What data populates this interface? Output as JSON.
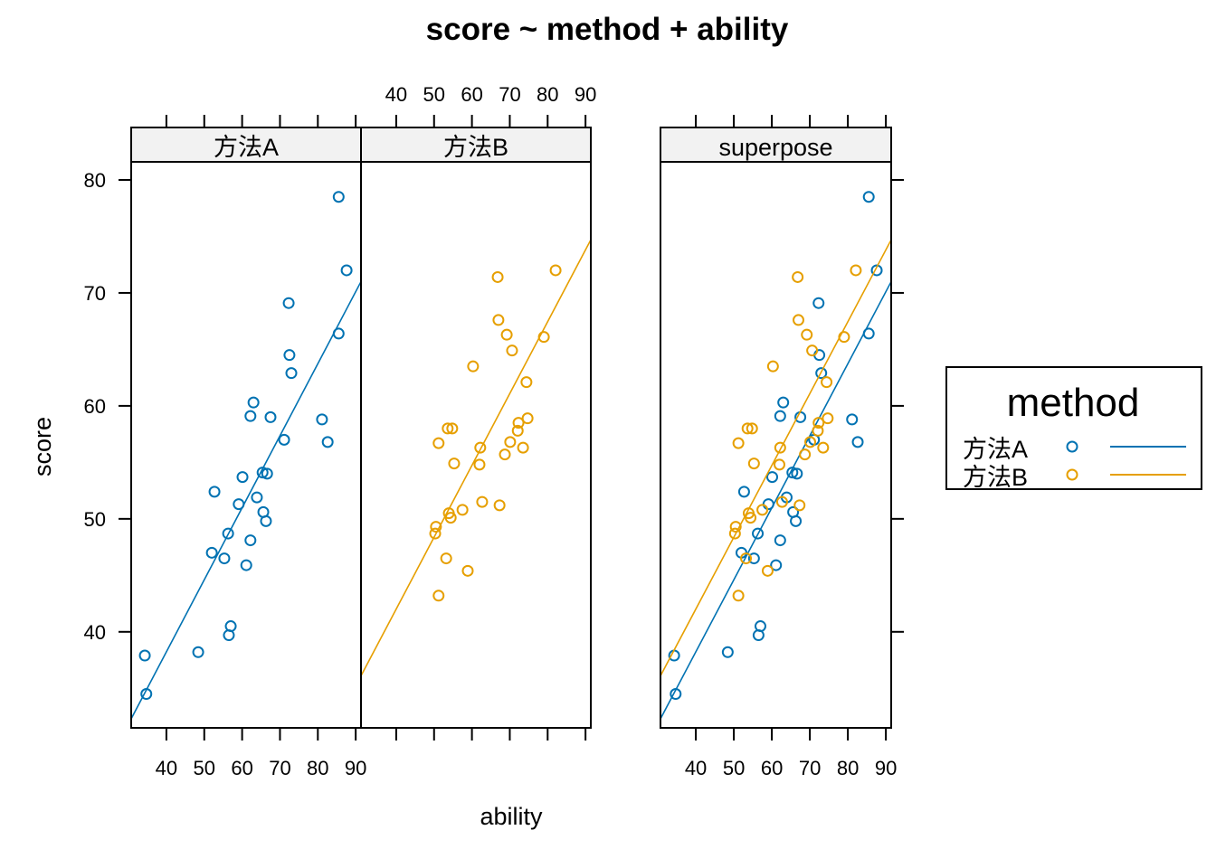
{
  "chart_data": {
    "type": "scatter",
    "title": "score ~ method + ability",
    "xlabel": "ability",
    "ylabel": "score",
    "xlim": [
      30.7,
      91.4
    ],
    "ylim": [
      31.5,
      81.6
    ],
    "x_ticks": [
      40,
      50,
      60,
      70,
      80,
      90
    ],
    "y_ticks": [
      40,
      50,
      60,
      70,
      80
    ],
    "grid": false,
    "colors": {
      "方法A": "#0072B2",
      "方法B": "#E69F00"
    },
    "panels": [
      {
        "strip": "方法A",
        "groups": [
          "方法A"
        ]
      },
      {
        "strip": "方法B",
        "groups": [
          "方法B"
        ]
      },
      {
        "strip": "superpose",
        "groups": [
          "方法A",
          "方法B"
        ]
      }
    ],
    "series": [
      {
        "name": "方法A",
        "x": [
          85.5,
          87.6,
          85.5,
          72.3,
          72.5,
          73.0,
          63.0,
          62.2,
          67.5,
          81.1,
          82.6,
          71.1,
          65.4,
          66.6,
          60.1,
          52.7,
          63.9,
          59.1,
          65.6,
          66.3,
          56.3,
          62.2,
          52.0,
          55.3,
          61.1,
          57.0,
          56.5,
          48.4,
          34.3,
          34.7
        ],
        "y": [
          78.5,
          72.0,
          66.4,
          69.1,
          64.5,
          62.9,
          60.3,
          59.1,
          59.0,
          58.8,
          56.8,
          57.0,
          54.1,
          54.0,
          53.7,
          52.4,
          51.9,
          51.3,
          50.6,
          49.8,
          48.7,
          48.1,
          47.0,
          46.5,
          45.9,
          40.5,
          39.7,
          38.2,
          37.9,
          34.5
        ],
        "fit_line": {
          "x": [
            30.7,
            91.4
          ],
          "y": [
            32.3,
            71.0
          ]
        }
      },
      {
        "name": "方法B",
        "x": [
          82.1,
          66.8,
          67.0,
          69.2,
          79.0,
          70.6,
          60.3,
          74.4,
          74.7,
          72.3,
          72.1,
          53.6,
          54.8,
          51.2,
          62.2,
          70.1,
          73.5,
          68.7,
          55.3,
          62.0,
          62.7,
          67.3,
          57.5,
          53.9,
          54.4,
          50.5,
          50.3,
          53.2,
          58.9,
          51.2
        ],
        "y": [
          72.0,
          71.4,
          67.6,
          66.3,
          66.1,
          64.9,
          63.5,
          62.1,
          58.9,
          58.5,
          57.8,
          58.0,
          58.0,
          56.7,
          56.3,
          56.8,
          56.3,
          55.7,
          54.9,
          54.8,
          51.5,
          51.2,
          50.8,
          50.5,
          50.1,
          49.3,
          48.7,
          46.5,
          45.4,
          43.2
        ],
        "fit_line": {
          "x": [
            30.7,
            91.4
          ],
          "y": [
            36.1,
            74.7
          ]
        }
      }
    ],
    "legend": {
      "title": "method",
      "entries": [
        "方法A",
        "方法B"
      ],
      "position": "right"
    }
  }
}
